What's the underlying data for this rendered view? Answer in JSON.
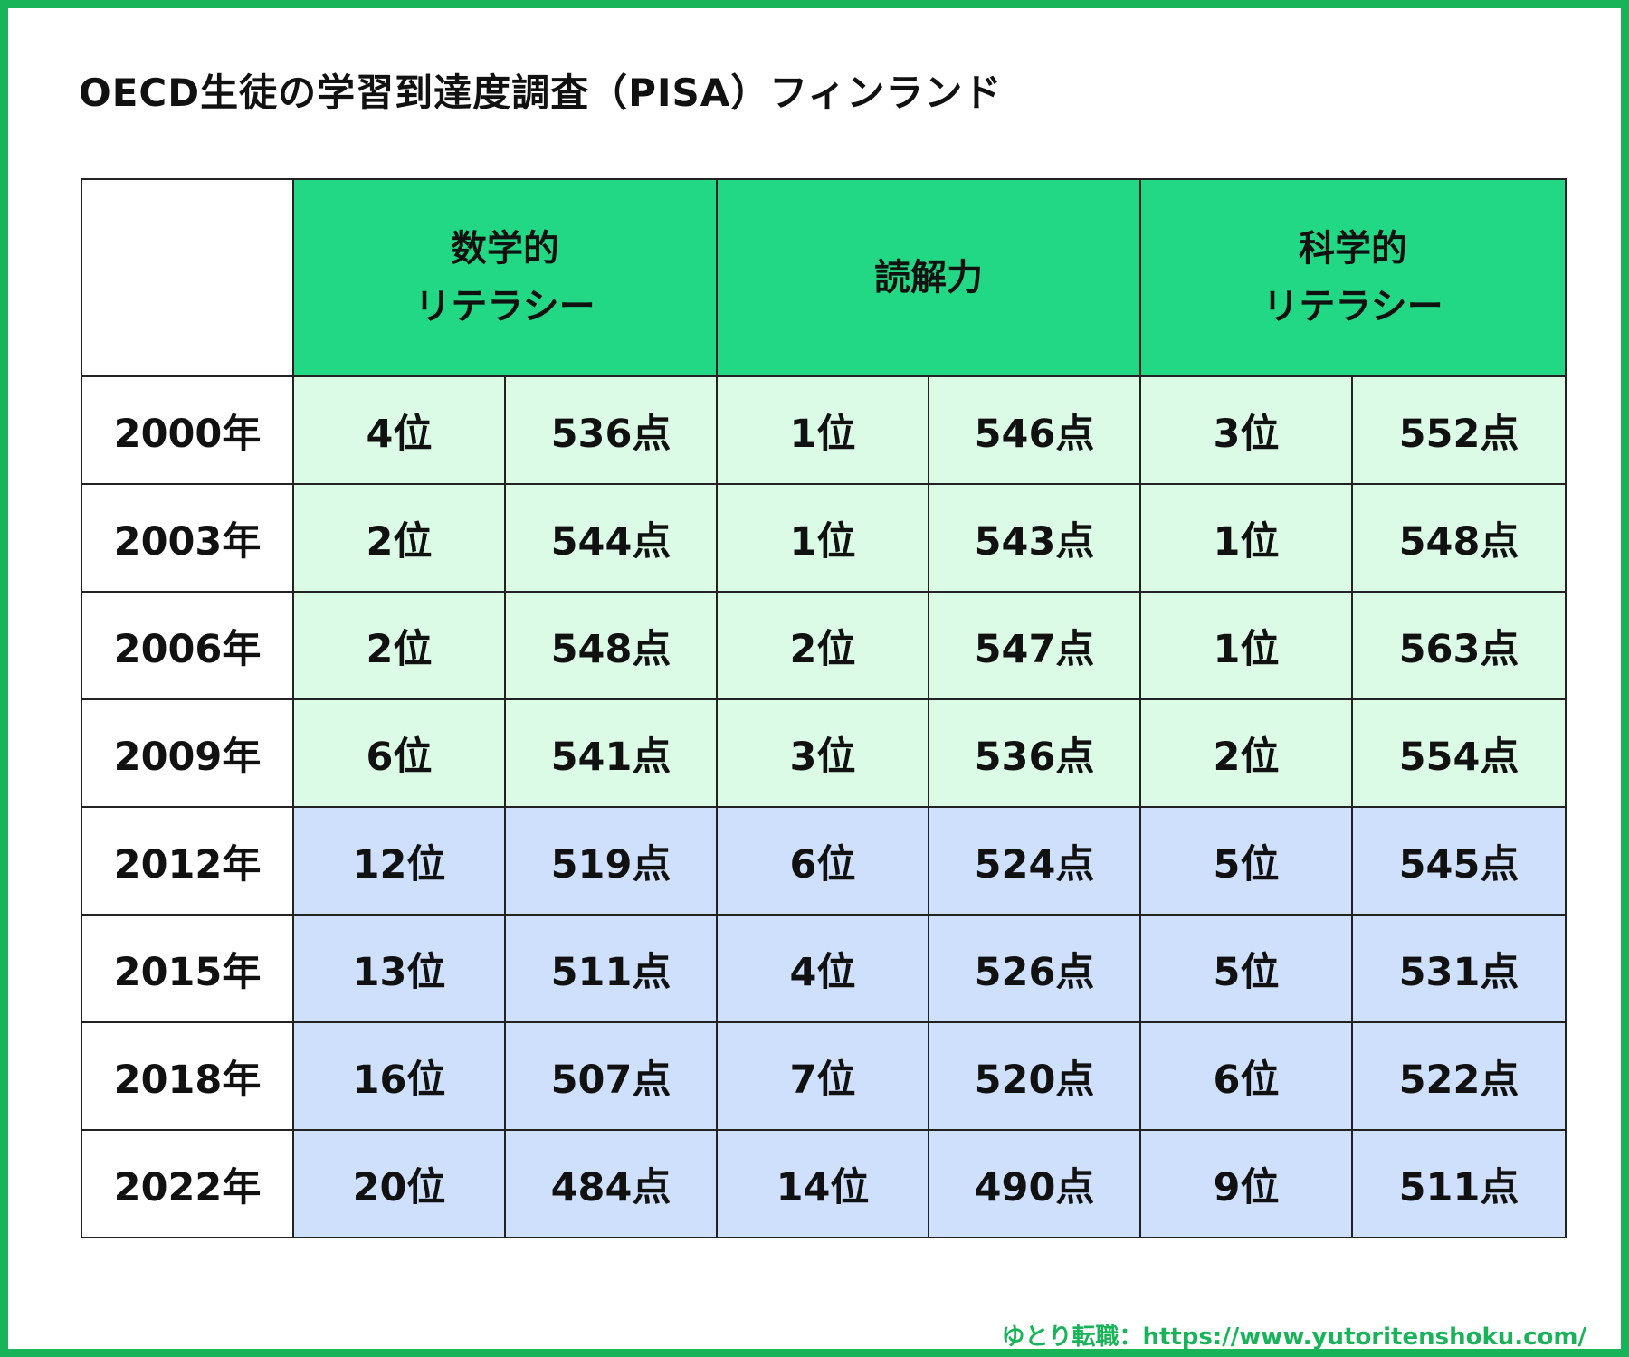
{
  "title": "OECD生徒の学習到達度調査（PISA）フィンランド",
  "credit": "ゆとり転職：https://www.yutoritenshoku.com/",
  "colors": {
    "frame": "#19b45a",
    "header": "#22d884",
    "rows_2000_2009": "#dcfbe6",
    "rows_2012_2022": "#cfe0fd"
  },
  "chart_data": {
    "type": "table",
    "columns": [
      {
        "name_lines": [
          "数学的",
          "リテラシー"
        ]
      },
      {
        "name_lines": [
          "読解力"
        ]
      },
      {
        "name_lines": [
          "科学的",
          "リテラシー"
        ]
      }
    ],
    "rows": [
      {
        "year": "2000年",
        "math_rank": "4位",
        "math_score": "536点",
        "read_rank": "1位",
        "read_score": "546点",
        "sci_rank": "3位",
        "sci_score": "552点",
        "band": "early"
      },
      {
        "year": "2003年",
        "math_rank": "2位",
        "math_score": "544点",
        "read_rank": "1位",
        "read_score": "543点",
        "sci_rank": "1位",
        "sci_score": "548点",
        "band": "early"
      },
      {
        "year": "2006年",
        "math_rank": "2位",
        "math_score": "548点",
        "read_rank": "2位",
        "read_score": "547点",
        "sci_rank": "1位",
        "sci_score": "563点",
        "band": "early"
      },
      {
        "year": "2009年",
        "math_rank": "6位",
        "math_score": "541点",
        "read_rank": "3位",
        "read_score": "536点",
        "sci_rank": "2位",
        "sci_score": "554点",
        "band": "early"
      },
      {
        "year": "2012年",
        "math_rank": "12位",
        "math_score": "519点",
        "read_rank": "6位",
        "read_score": "524点",
        "sci_rank": "5位",
        "sci_score": "545点",
        "band": "late"
      },
      {
        "year": "2015年",
        "math_rank": "13位",
        "math_score": "511点",
        "read_rank": "4位",
        "read_score": "526点",
        "sci_rank": "5位",
        "sci_score": "531点",
        "band": "late"
      },
      {
        "year": "2018年",
        "math_rank": "16位",
        "math_score": "507点",
        "read_rank": "7位",
        "read_score": "520点",
        "sci_rank": "6位",
        "sci_score": "522点",
        "band": "late"
      },
      {
        "year": "2022年",
        "math_rank": "20位",
        "math_score": "484点",
        "read_rank": "14位",
        "read_score": "490点",
        "sci_rank": "9位",
        "sci_score": "511点",
        "band": "late"
      }
    ]
  }
}
